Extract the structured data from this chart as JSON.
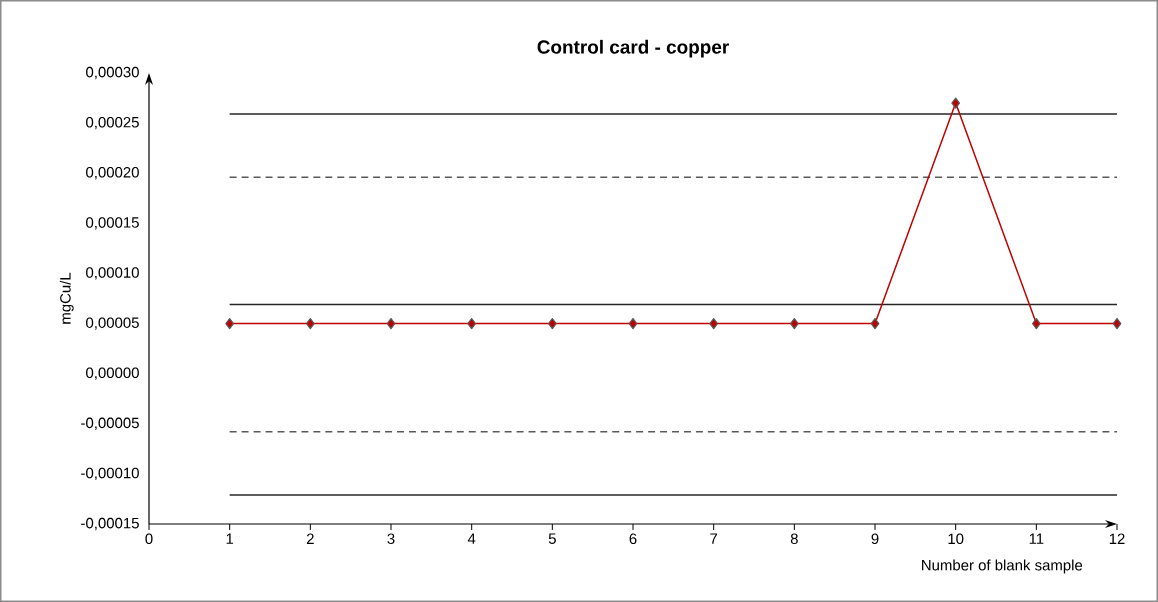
{
  "chart_data": {
    "type": "line",
    "title": "Control card - copper",
    "xlabel": "Number of blank sample",
    "ylabel": "mgCu/L",
    "grid": false,
    "marker": "diamond",
    "line_style": "solid",
    "xlim": [
      0,
      12
    ],
    "xticks": [
      0,
      1,
      2,
      3,
      4,
      5,
      6,
      7,
      8,
      9,
      10,
      11,
      12
    ],
    "ylim": [
      -0.00015,
      0.0003
    ],
    "yticks": [
      {
        "value": -0.00015,
        "label": "-0,00015"
      },
      {
        "value": -0.0001,
        "label": "-0,00010"
      },
      {
        "value": -5e-05,
        "label": "-0,00005"
      },
      {
        "value": 0,
        "label": "0,00000"
      },
      {
        "value": 5e-05,
        "label": "0,00005"
      },
      {
        "value": 0.0001,
        "label": "0,00010"
      },
      {
        "value": 0.00015,
        "label": "0,00015"
      },
      {
        "value": 0.0002,
        "label": "0,00020"
      },
      {
        "value": 0.00025,
        "label": "0,00025"
      },
      {
        "value": 0.0003,
        "label": "0,00030"
      }
    ],
    "series": [
      {
        "color": "#262626",
        "x": [
          1,
          12
        ],
        "values": [
          0.000259,
          0.000259
        ],
        "marker": "none",
        "line_style": "solid"
      },
      {
        "color": "#595959",
        "x": [
          1,
          12
        ],
        "values": [
          0.000196,
          0.000196
        ],
        "marker": "none",
        "line_style": "dashed"
      },
      {
        "color": "#262626",
        "x": [
          1,
          12
        ],
        "values": [
          6.9e-05,
          6.9e-05
        ],
        "marker": "none",
        "line_style": "solid"
      },
      {
        "color": "#595959",
        "x": [
          1,
          12
        ],
        "values": [
          -5.8e-05,
          -5.8e-05
        ],
        "marker": "none",
        "line_style": "dashed"
      },
      {
        "color": "#262626",
        "x": [
          1,
          12
        ],
        "values": [
          -0.000121,
          -0.000121
        ],
        "marker": "none",
        "line_style": "solid"
      },
      {
        "color": "#c00000",
        "x": [
          1,
          2,
          3,
          4,
          5,
          6,
          7,
          8,
          9,
          10,
          11,
          12
        ],
        "values": [
          5e-05,
          5e-05,
          5e-05,
          5e-05,
          5e-05,
          5e-05,
          5e-05,
          5e-05,
          5e-05,
          0.00027,
          5e-05,
          5e-05
        ]
      }
    ]
  }
}
